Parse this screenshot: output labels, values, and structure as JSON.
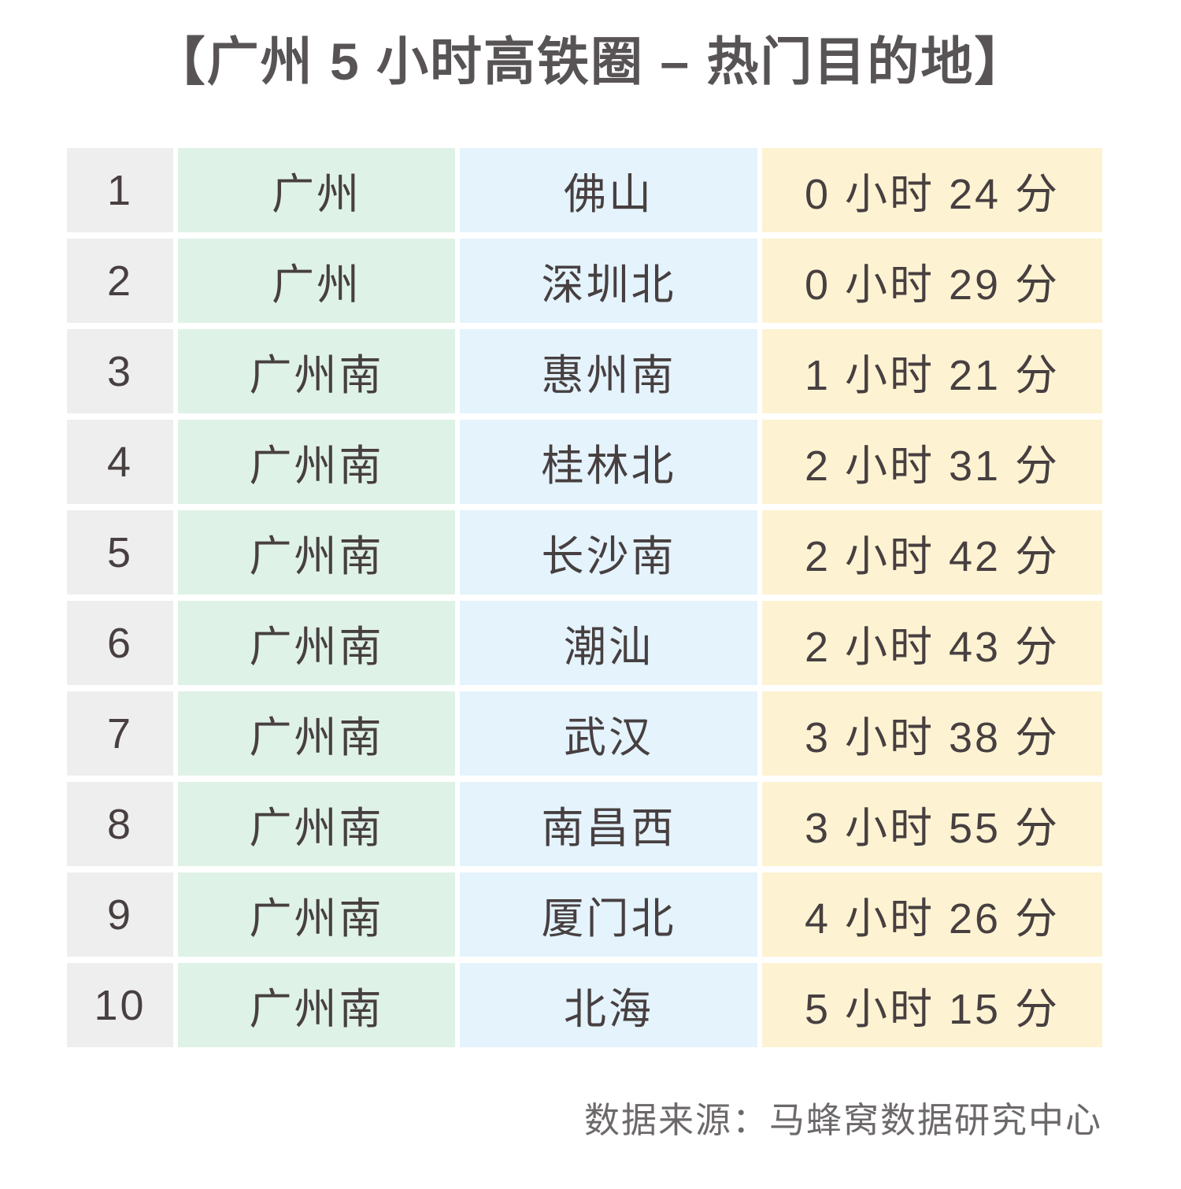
{
  "title": "【广州 5 小时高铁圈 – 热门目的地】",
  "footer": {
    "source_label": "数据来源：马蜂窝数据研究中心"
  },
  "palette": {
    "rank_column_bg": "#eeeeee",
    "origin_column_bg": "#dff2e7",
    "destination_column_bg": "#e4f3fc",
    "duration_column_bg": "#fdf3d2",
    "title_color": "#585456",
    "cell_text_color": "#473f40",
    "footer_text_color": "#6d696a",
    "background": "#ffffff"
  },
  "chart_data": {
    "type": "table",
    "title": "广州 5 小时高铁圈 – 热门目的地",
    "columns": [
      "rank",
      "origin_station",
      "destination_station",
      "travel_time"
    ],
    "header_row_visible": false,
    "rows": [
      {
        "rank": "1",
        "origin": "广州",
        "destination": "佛山",
        "duration": "0 小时 24 分"
      },
      {
        "rank": "2",
        "origin": "广州",
        "destination": "深圳北",
        "duration": "0 小时 29 分"
      },
      {
        "rank": "3",
        "origin": "广州南",
        "destination": "惠州南",
        "duration": "1 小时 21 分"
      },
      {
        "rank": "4",
        "origin": "广州南",
        "destination": "桂林北",
        "duration": "2 小时 31 分"
      },
      {
        "rank": "5",
        "origin": "广州南",
        "destination": "长沙南",
        "duration": "2 小时 42 分"
      },
      {
        "rank": "6",
        "origin": "广州南",
        "destination": "潮汕",
        "duration": "2 小时 43 分"
      },
      {
        "rank": "7",
        "origin": "广州南",
        "destination": "武汉",
        "duration": "3 小时 38 分"
      },
      {
        "rank": "8",
        "origin": "广州南",
        "destination": "南昌西",
        "duration": "3 小时 55 分"
      },
      {
        "rank": "9",
        "origin": "广州南",
        "destination": "厦门北",
        "duration": "4 小时 26 分"
      },
      {
        "rank": "10",
        "origin": "广州南",
        "destination": "北海",
        "duration": "5 小时 15 分"
      }
    ]
  }
}
